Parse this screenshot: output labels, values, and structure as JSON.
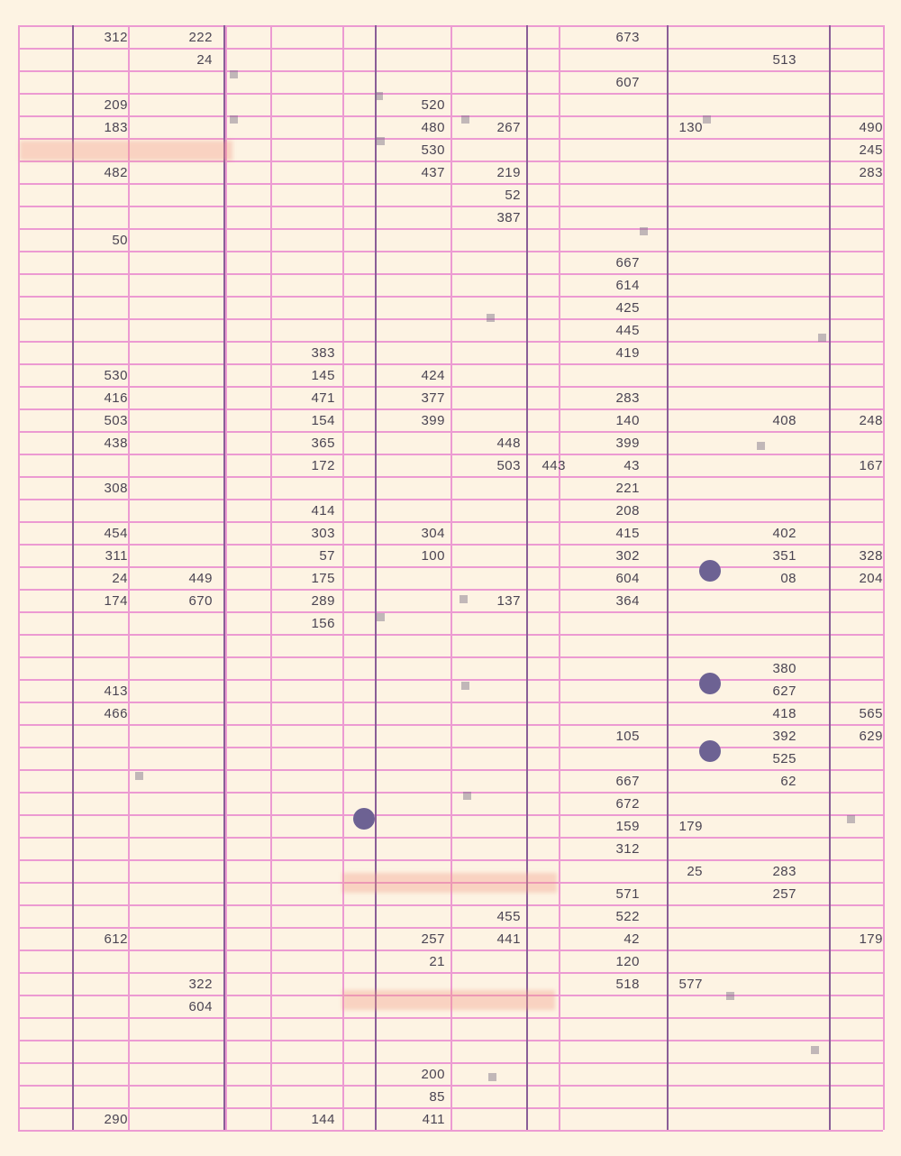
{
  "columns": 13,
  "rows": [
    [
      "",
      "312",
      "222",
      "",
      "",
      "",
      "",
      "",
      "",
      "673",
      "",
      "",
      ""
    ],
    [
      "",
      "",
      "24",
      "",
      "",
      "",
      "",
      "",
      "",
      "",
      "",
      "513",
      ""
    ],
    [
      "",
      "",
      "",
      "",
      "",
      "",
      "",
      "",
      "",
      "607",
      "",
      "",
      ""
    ],
    [
      "",
      "209",
      "",
      "",
      "",
      "",
      "520",
      "",
      "",
      "",
      "",
      "",
      ""
    ],
    [
      "",
      "183",
      "",
      "",
      "",
      "",
      "480",
      "267",
      "",
      "",
      "130",
      "",
      "490"
    ],
    [
      "",
      "",
      "",
      "",
      "",
      "",
      "530",
      "",
      "",
      "",
      "",
      "",
      "245"
    ],
    [
      "",
      "482",
      "",
      "",
      "",
      "",
      "437",
      "219",
      "",
      "",
      "",
      "",
      "283"
    ],
    [
      "",
      "",
      "",
      "",
      "",
      "",
      "",
      "52",
      "",
      "",
      "",
      "",
      ""
    ],
    [
      "",
      "",
      "",
      "",
      "",
      "",
      "",
      "387",
      "",
      "",
      "",
      "",
      ""
    ],
    [
      "",
      "50",
      "",
      "",
      "",
      "",
      "",
      "",
      "",
      "",
      "",
      "",
      ""
    ],
    [
      "",
      "",
      "",
      "",
      "",
      "",
      "",
      "",
      "",
      "667",
      "",
      "",
      ""
    ],
    [
      "",
      "",
      "",
      "",
      "",
      "",
      "",
      "",
      "",
      "614",
      "",
      "",
      ""
    ],
    [
      "",
      "",
      "",
      "",
      "",
      "",
      "",
      "",
      "",
      "425",
      "",
      "",
      ""
    ],
    [
      "",
      "",
      "",
      "",
      "",
      "",
      "",
      "",
      "",
      "445",
      "",
      "",
      ""
    ],
    [
      "",
      "",
      "",
      "",
      "383",
      "",
      "",
      "",
      "",
      "419",
      "",
      "",
      ""
    ],
    [
      "",
      "530",
      "",
      "",
      "145",
      "",
      "424",
      "",
      "",
      "",
      "",
      "",
      ""
    ],
    [
      "",
      "416",
      "",
      "",
      "471",
      "",
      "377",
      "",
      "",
      "283",
      "",
      "",
      ""
    ],
    [
      "",
      "503",
      "",
      "",
      "154",
      "",
      "399",
      "",
      "",
      "140",
      "",
      "408",
      "248"
    ],
    [
      "",
      "438",
      "",
      "",
      "365",
      "",
      "",
      "448",
      "",
      "399",
      "",
      "",
      ""
    ],
    [
      "",
      "",
      "",
      "",
      "172",
      "",
      "",
      "503",
      "443",
      "43",
      "",
      "",
      "167"
    ],
    [
      "",
      "308",
      "",
      "",
      "",
      "",
      "",
      "",
      "",
      "221",
      "",
      "",
      ""
    ],
    [
      "",
      "",
      "",
      "",
      "414",
      "",
      "",
      "",
      "",
      "208",
      "",
      "",
      ""
    ],
    [
      "",
      "454",
      "",
      "",
      "303",
      "",
      "304",
      "",
      "",
      "415",
      "",
      "402",
      ""
    ],
    [
      "",
      "311",
      "",
      "",
      "57",
      "",
      "100",
      "",
      "",
      "302",
      "",
      "351",
      "328"
    ],
    [
      "",
      "24",
      "449",
      "",
      "175",
      "",
      "",
      "",
      "",
      "604",
      "",
      "08",
      "204"
    ],
    [
      "",
      "174",
      "670",
      "",
      "289",
      "",
      "",
      "137",
      "",
      "364",
      "",
      "",
      ""
    ],
    [
      "",
      "",
      "",
      "",
      "156",
      "",
      "",
      "",
      "",
      "",
      "",
      "",
      ""
    ],
    [
      "",
      "",
      "",
      "",
      "",
      "",
      "",
      "",
      "",
      "",
      "",
      "",
      ""
    ],
    [
      "",
      "",
      "",
      "",
      "",
      "",
      "",
      "",
      "",
      "",
      "",
      "380",
      ""
    ],
    [
      "",
      "413",
      "",
      "",
      "",
      "",
      "",
      "",
      "",
      "",
      "",
      "627",
      ""
    ],
    [
      "",
      "466",
      "",
      "",
      "",
      "",
      "",
      "",
      "",
      "",
      "",
      "418",
      "565"
    ],
    [
      "",
      "",
      "",
      "",
      "",
      "",
      "",
      "",
      "",
      "105",
      "",
      "392",
      "629"
    ],
    [
      "",
      "",
      "",
      "",
      "",
      "",
      "",
      "",
      "",
      "",
      "",
      "525",
      ""
    ],
    [
      "",
      "",
      "",
      "",
      "",
      "",
      "",
      "",
      "",
      "667",
      "",
      "62",
      ""
    ],
    [
      "",
      "",
      "",
      "",
      "",
      "",
      "",
      "",
      "",
      "672",
      "",
      "",
      ""
    ],
    [
      "",
      "",
      "",
      "",
      "",
      "",
      "",
      "",
      "",
      "159",
      "179",
      "",
      ""
    ],
    [
      "",
      "",
      "",
      "",
      "",
      "",
      "",
      "",
      "",
      "312",
      "",
      "",
      ""
    ],
    [
      "",
      "",
      "",
      "",
      "",
      "",
      "",
      "",
      "",
      "",
      "25",
      "283",
      ""
    ],
    [
      "",
      "",
      "",
      "",
      "",
      "",
      "",
      "",
      "",
      "571",
      "",
      "257",
      ""
    ],
    [
      "",
      "",
      "",
      "",
      "",
      "",
      "",
      "455",
      "",
      "522",
      "",
      "",
      ""
    ],
    [
      "",
      "612",
      "",
      "",
      "",
      "",
      "257",
      "441",
      "",
      "42",
      "",
      "",
      "179"
    ],
    [
      "",
      "",
      "",
      "",
      "",
      "",
      "21",
      "",
      "",
      "120",
      "",
      "",
      ""
    ],
    [
      "",
      "",
      "322",
      "",
      "",
      "",
      "",
      "",
      "",
      "518",
      "577",
      "",
      ""
    ],
    [
      "",
      "",
      "604",
      "",
      "",
      "",
      "",
      "",
      "",
      "",
      "",
      "",
      ""
    ],
    [
      "",
      "",
      "",
      "",
      "",
      "",
      "",
      "",
      "",
      "",
      "",
      "",
      ""
    ],
    [
      "",
      "",
      "",
      "",
      "",
      "",
      "",
      "",
      "",
      "",
      "",
      "",
      ""
    ],
    [
      "",
      "",
      "",
      "",
      "",
      "",
      "200",
      "",
      "",
      "",
      "",
      "",
      ""
    ],
    [
      "",
      "",
      "",
      "",
      "",
      "",
      "85",
      "",
      "",
      "",
      "",
      "",
      ""
    ],
    [
      "",
      "290",
      "",
      "",
      "144",
      "",
      "411",
      "",
      "",
      "",
      "",
      "",
      ""
    ]
  ],
  "colors": {
    "paper": "#fdf3e3",
    "grid": "#ec9ad2",
    "divider": "#8a5e97",
    "ink": "#4a4452",
    "dot": "#6d6293",
    "stain": "#f0967f"
  }
}
